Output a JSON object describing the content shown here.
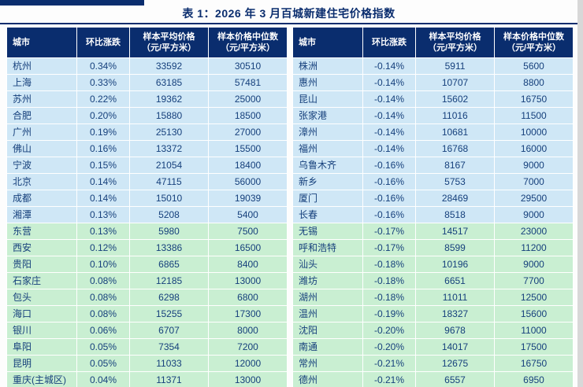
{
  "page": {
    "title": "表 1：2026 年 3 月百城新建住宅价格指数"
  },
  "colors": {
    "navy_header": "#0a2d6e",
    "blue_row": "#cfe7f6",
    "green_row": "#c9efd2",
    "cell_text": "#16407c"
  },
  "table": {
    "headers": {
      "city": "城市",
      "change": "环比涨跌",
      "avg_line1": "样本平均价格",
      "avg_line2": "（元/平方米）",
      "median_line1": "样本价格中位数",
      "median_line2": "（元/平方米）"
    },
    "left_rows": [
      {
        "city": "杭州",
        "change": "0.34%",
        "avg": "33592",
        "median": "30510",
        "tone": "blue"
      },
      {
        "city": "上海",
        "change": "0.33%",
        "avg": "63185",
        "median": "57481",
        "tone": "blue"
      },
      {
        "city": "苏州",
        "change": "0.22%",
        "avg": "19362",
        "median": "25000",
        "tone": "blue"
      },
      {
        "city": "合肥",
        "change": "0.20%",
        "avg": "15880",
        "median": "18500",
        "tone": "blue"
      },
      {
        "city": "广州",
        "change": "0.19%",
        "avg": "25130",
        "median": "27000",
        "tone": "blue"
      },
      {
        "city": "佛山",
        "change": "0.16%",
        "avg": "13372",
        "median": "15500",
        "tone": "blue"
      },
      {
        "city": "宁波",
        "change": "0.15%",
        "avg": "21054",
        "median": "18400",
        "tone": "blue"
      },
      {
        "city": "北京",
        "change": "0.14%",
        "avg": "47115",
        "median": "56000",
        "tone": "blue"
      },
      {
        "city": "成都",
        "change": "0.14%",
        "avg": "15010",
        "median": "19039",
        "tone": "blue"
      },
      {
        "city": "湘潭",
        "change": "0.13%",
        "avg": "5208",
        "median": "5400",
        "tone": "blue"
      },
      {
        "city": "东营",
        "change": "0.13%",
        "avg": "5980",
        "median": "7500",
        "tone": "green"
      },
      {
        "city": "西安",
        "change": "0.12%",
        "avg": "13386",
        "median": "16500",
        "tone": "green"
      },
      {
        "city": "贵阳",
        "change": "0.10%",
        "avg": "6865",
        "median": "8400",
        "tone": "green"
      },
      {
        "city": "石家庄",
        "change": "0.08%",
        "avg": "12185",
        "median": "13000",
        "tone": "green"
      },
      {
        "city": "包头",
        "change": "0.08%",
        "avg": "6298",
        "median": "6800",
        "tone": "green"
      },
      {
        "city": "海口",
        "change": "0.08%",
        "avg": "15255",
        "median": "17300",
        "tone": "green"
      },
      {
        "city": "银川",
        "change": "0.06%",
        "avg": "6707",
        "median": "8000",
        "tone": "green"
      },
      {
        "city": "阜阳",
        "change": "0.05%",
        "avg": "7354",
        "median": "7200",
        "tone": "green"
      },
      {
        "city": "昆明",
        "change": "0.05%",
        "avg": "11033",
        "median": "12000",
        "tone": "green"
      },
      {
        "city": "重庆(主城区)",
        "change": "0.04%",
        "avg": "11371",
        "median": "13000",
        "tone": "green"
      }
    ],
    "right_rows": [
      {
        "city": "株洲",
        "change": "-0.14%",
        "avg": "5911",
        "median": "5600",
        "tone": "blue"
      },
      {
        "city": "惠州",
        "change": "-0.14%",
        "avg": "10707",
        "median": "8800",
        "tone": "blue"
      },
      {
        "city": "昆山",
        "change": "-0.14%",
        "avg": "15602",
        "median": "16750",
        "tone": "blue"
      },
      {
        "city": "张家港",
        "change": "-0.14%",
        "avg": "11016",
        "median": "11500",
        "tone": "blue"
      },
      {
        "city": "漳州",
        "change": "-0.14%",
        "avg": "10681",
        "median": "10000",
        "tone": "blue"
      },
      {
        "city": "福州",
        "change": "-0.14%",
        "avg": "16768",
        "median": "16000",
        "tone": "blue"
      },
      {
        "city": "乌鲁木齐",
        "change": "-0.16%",
        "avg": "8167",
        "median": "9000",
        "tone": "blue"
      },
      {
        "city": "新乡",
        "change": "-0.16%",
        "avg": "5753",
        "median": "7000",
        "tone": "blue"
      },
      {
        "city": "厦门",
        "change": "-0.16%",
        "avg": "28469",
        "median": "29500",
        "tone": "blue"
      },
      {
        "city": "长春",
        "change": "-0.16%",
        "avg": "8518",
        "median": "9000",
        "tone": "blue"
      },
      {
        "city": "无锡",
        "change": "-0.17%",
        "avg": "14517",
        "median": "23000",
        "tone": "green"
      },
      {
        "city": "呼和浩特",
        "change": "-0.17%",
        "avg": "8599",
        "median": "11200",
        "tone": "green"
      },
      {
        "city": "汕头",
        "change": "-0.18%",
        "avg": "10196",
        "median": "9000",
        "tone": "green"
      },
      {
        "city": "潍坊",
        "change": "-0.18%",
        "avg": "6651",
        "median": "7700",
        "tone": "green"
      },
      {
        "city": "湖州",
        "change": "-0.18%",
        "avg": "11011",
        "median": "12500",
        "tone": "green"
      },
      {
        "city": "温州",
        "change": "-0.19%",
        "avg": "18327",
        "median": "15600",
        "tone": "green"
      },
      {
        "city": "沈阳",
        "change": "-0.20%",
        "avg": "9678",
        "median": "11000",
        "tone": "green"
      },
      {
        "city": "南通",
        "change": "-0.20%",
        "avg": "14017",
        "median": "17500",
        "tone": "green"
      },
      {
        "city": "常州",
        "change": "-0.21%",
        "avg": "12675",
        "median": "16750",
        "tone": "green"
      },
      {
        "city": "德州",
        "change": "-0.21%",
        "avg": "6557",
        "median": "6950",
        "tone": "green"
      }
    ]
  }
}
